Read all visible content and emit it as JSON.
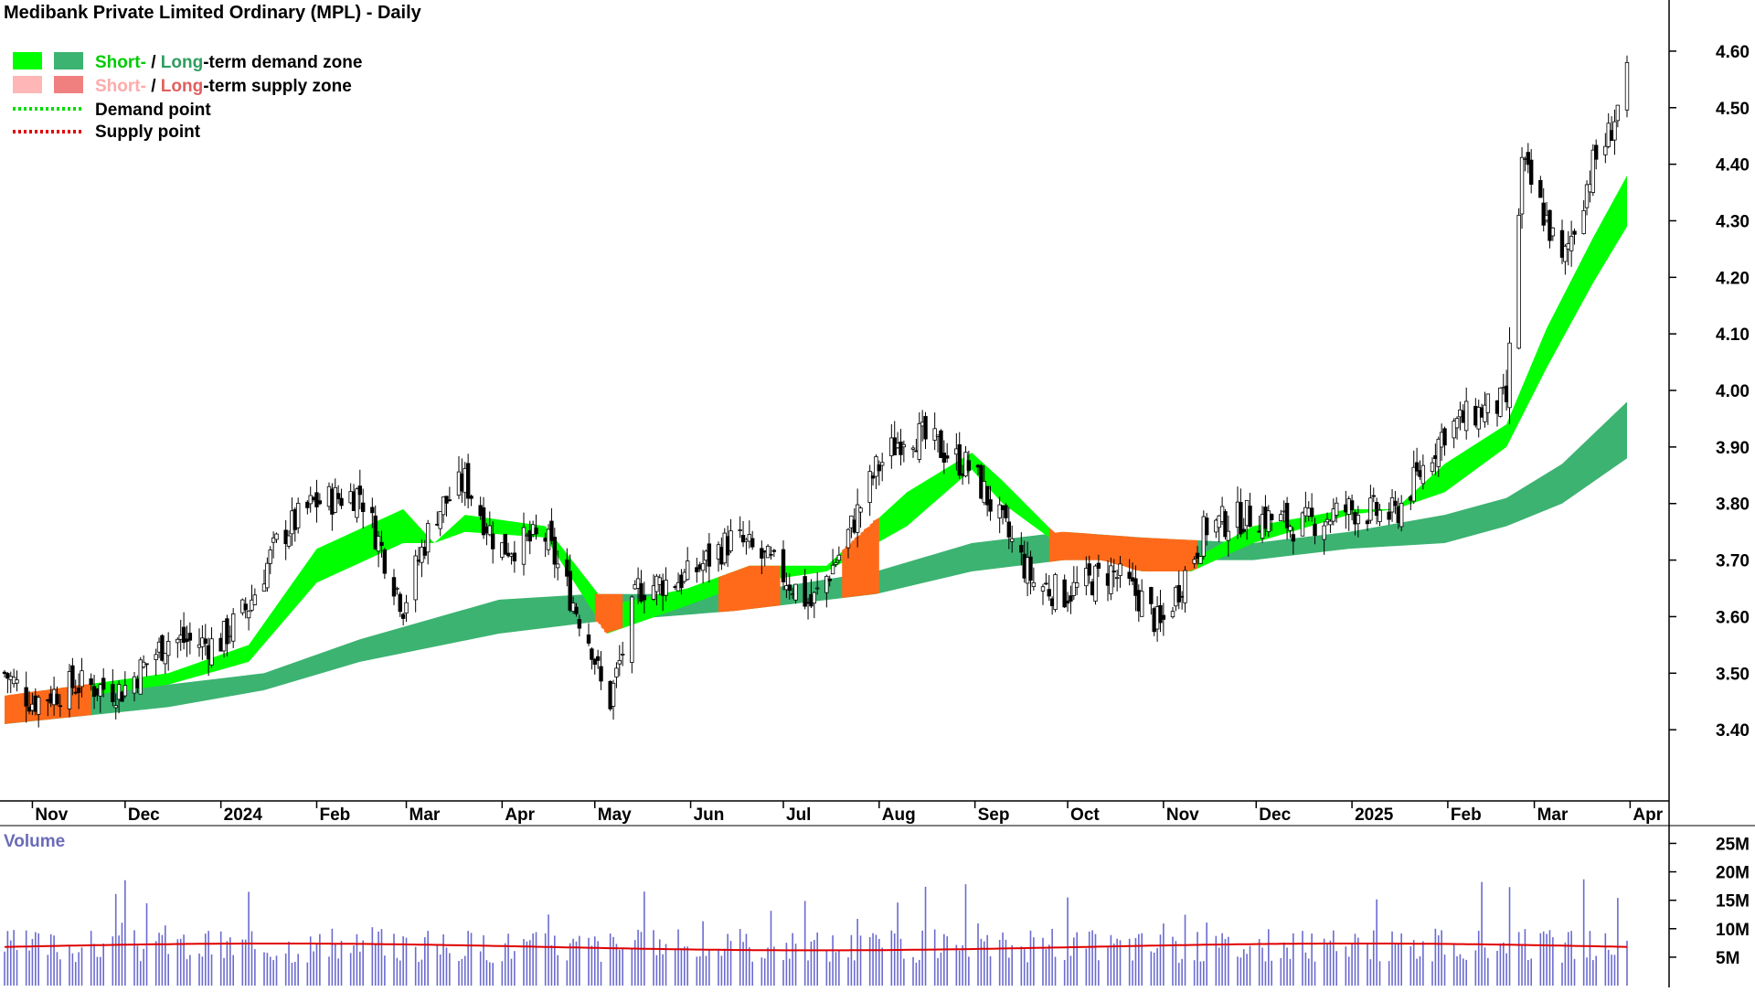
{
  "title": "Medibank Private Limited Ordinary (MPL) - Daily",
  "legend": {
    "demand_zone": {
      "short": "Short-",
      "sep": " / ",
      "long": "Long",
      "rest": "-term demand zone"
    },
    "supply_zone": {
      "short": "Short-",
      "sep": " / ",
      "long": "Long",
      "rest": "-term supply zone"
    },
    "demand_point": "Demand point",
    "supply_point": "Supply point"
  },
  "colors": {
    "short_demand": "#00ff00",
    "long_demand": "#3cb371",
    "short_supply": "#ffb6b6",
    "long_supply": "#f08080",
    "supply_fill": "#ff6a1a",
    "demand_point": "#00dd00",
    "supply_point": "#e00000",
    "volume_bar": "#6b6bd0",
    "volume_avg": "#e00000",
    "volume_title": "#6b6bb8"
  },
  "chart_data": [
    {
      "type": "candlestick",
      "title": "Medibank Private Limited Ordinary (MPL) - Daily",
      "x_tick_labels": [
        "Nov",
        "Dec",
        "2024",
        "Feb",
        "Mar",
        "Apr",
        "May",
        "Jun",
        "Jul",
        "Aug",
        "Sep",
        "Oct",
        "Nov",
        "Dec",
        "2025",
        "Feb",
        "Mar",
        "Apr"
      ],
      "y_tick_labels": [
        "4.60",
        "4.50",
        "4.40",
        "4.30",
        "4.20",
        "4.10",
        "4.00",
        "3.90",
        "3.80",
        "3.70",
        "3.60",
        "3.50",
        "3.40"
      ],
      "ylim": [
        3.3,
        4.65
      ],
      "grid": false,
      "legend_position": "top-left",
      "close_series": [
        [
          "2023-10-23",
          3.5
        ],
        [
          "2023-11-01",
          3.45
        ],
        [
          "2023-11-15",
          3.48
        ],
        [
          "2023-11-30",
          3.47
        ],
        [
          "2023-12-15",
          3.56
        ],
        [
          "2023-12-31",
          3.55
        ],
        [
          "2024-01-10",
          3.62
        ],
        [
          "2024-01-20",
          3.74
        ],
        [
          "2024-01-31",
          3.8
        ],
        [
          "2024-02-15",
          3.82
        ],
        [
          "2024-02-29",
          3.62
        ],
        [
          "2024-03-10",
          3.78
        ],
        [
          "2024-03-20",
          3.84
        ],
        [
          "2024-03-31",
          3.72
        ],
        [
          "2024-04-15",
          3.74
        ],
        [
          "2024-04-30",
          3.55
        ],
        [
          "2024-05-05",
          3.43
        ],
        [
          "2024-05-15",
          3.65
        ],
        [
          "2024-05-31",
          3.67
        ],
        [
          "2024-06-15",
          3.74
        ],
        [
          "2024-06-30",
          3.68
        ],
        [
          "2024-07-10",
          3.62
        ],
        [
          "2024-07-20",
          3.72
        ],
        [
          "2024-07-31",
          3.86
        ],
        [
          "2024-08-10",
          3.93
        ],
        [
          "2024-08-20",
          3.9
        ],
        [
          "2024-08-31",
          3.86
        ],
        [
          "2024-09-10",
          3.76
        ],
        [
          "2024-09-20",
          3.66
        ],
        [
          "2024-09-30",
          3.64
        ],
        [
          "2024-10-15",
          3.68
        ],
        [
          "2024-10-25",
          3.63
        ],
        [
          "2024-10-31",
          3.58
        ],
        [
          "2024-11-15",
          3.76
        ],
        [
          "2024-11-30",
          3.78
        ],
        [
          "2024-12-15",
          3.76
        ],
        [
          "2024-12-31",
          3.79
        ],
        [
          "2025-01-15",
          3.78
        ],
        [
          "2025-01-31",
          3.93
        ],
        [
          "2025-02-10",
          3.96
        ],
        [
          "2025-02-20",
          3.98
        ],
        [
          "2025-02-25",
          4.4
        ],
        [
          "2025-03-05",
          4.3
        ],
        [
          "2025-03-10",
          4.22
        ],
        [
          "2025-03-20",
          4.4
        ],
        [
          "2025-03-25",
          4.45
        ],
        [
          "2025-03-31",
          4.55
        ]
      ],
      "short_term_zone": [
        [
          "2023-10-23",
          3.46,
          3.44
        ],
        [
          "2023-12-15",
          3.5,
          3.48
        ],
        [
          "2024-01-10",
          3.55,
          3.52
        ],
        [
          "2024-02-01",
          3.72,
          3.66
        ],
        [
          "2024-02-29",
          3.79,
          3.73
        ],
        [
          "2024-03-10",
          3.73,
          3.73
        ],
        [
          "2024-03-20",
          3.78,
          3.75
        ],
        [
          "2024-04-15",
          3.76,
          3.74
        ],
        [
          "2024-05-05",
          3.62,
          3.57
        ],
        [
          "2024-05-31",
          3.65,
          3.62
        ],
        [
          "2024-06-20",
          3.69,
          3.66
        ],
        [
          "2024-07-15",
          3.69,
          3.68
        ],
        [
          "2024-08-10",
          3.82,
          3.76
        ],
        [
          "2024-08-31",
          3.89,
          3.86
        ],
        [
          "2024-09-10",
          3.84,
          3.8
        ],
        [
          "2024-09-30",
          3.73,
          3.72
        ],
        [
          "2024-10-25",
          3.7,
          3.68
        ],
        [
          "2024-11-10",
          3.7,
          3.68
        ],
        [
          "2024-11-30",
          3.76,
          3.73
        ],
        [
          "2024-12-31",
          3.79,
          3.78
        ],
        [
          "2025-01-15",
          3.79,
          3.79
        ],
        [
          "2025-01-31",
          3.87,
          3.82
        ],
        [
          "2025-02-20",
          3.94,
          3.9
        ],
        [
          "2025-03-05",
          4.11,
          4.04
        ],
        [
          "2025-03-20",
          4.27,
          4.19
        ],
        [
          "2025-03-31",
          4.38,
          4.29
        ]
      ],
      "long_term_zone": [
        [
          "2023-10-23",
          3.45,
          3.41
        ],
        [
          "2023-12-15",
          3.48,
          3.44
        ],
        [
          "2024-01-15",
          3.5,
          3.47
        ],
        [
          "2024-02-15",
          3.56,
          3.52
        ],
        [
          "2024-03-31",
          3.63,
          3.57
        ],
        [
          "2024-04-30",
          3.64,
          3.59
        ],
        [
          "2024-06-15",
          3.64,
          3.61
        ],
        [
          "2024-07-31",
          3.68,
          3.64
        ],
        [
          "2024-08-31",
          3.73,
          3.68
        ],
        [
          "2024-09-30",
          3.75,
          3.7
        ],
        [
          "2024-10-25",
          3.74,
          3.7
        ],
        [
          "2024-11-30",
          3.73,
          3.7
        ],
        [
          "2024-12-31",
          3.75,
          3.72
        ],
        [
          "2025-01-31",
          3.78,
          3.73
        ],
        [
          "2025-02-20",
          3.81,
          3.76
        ],
        [
          "2025-03-10",
          3.87,
          3.8
        ],
        [
          "2025-03-31",
          3.98,
          3.88
        ]
      ]
    },
    {
      "type": "bar",
      "title": "Volume",
      "y_tick_labels": [
        "25M",
        "20M",
        "15M",
        "10M",
        "5M"
      ],
      "ylim": [
        0,
        27000000
      ],
      "series": [
        {
          "type": "line",
          "values_summary": "moving average approx 7M, rising toward 8M in Sep-Oct 2024 and Mar 2025"
        }
      ]
    }
  ]
}
